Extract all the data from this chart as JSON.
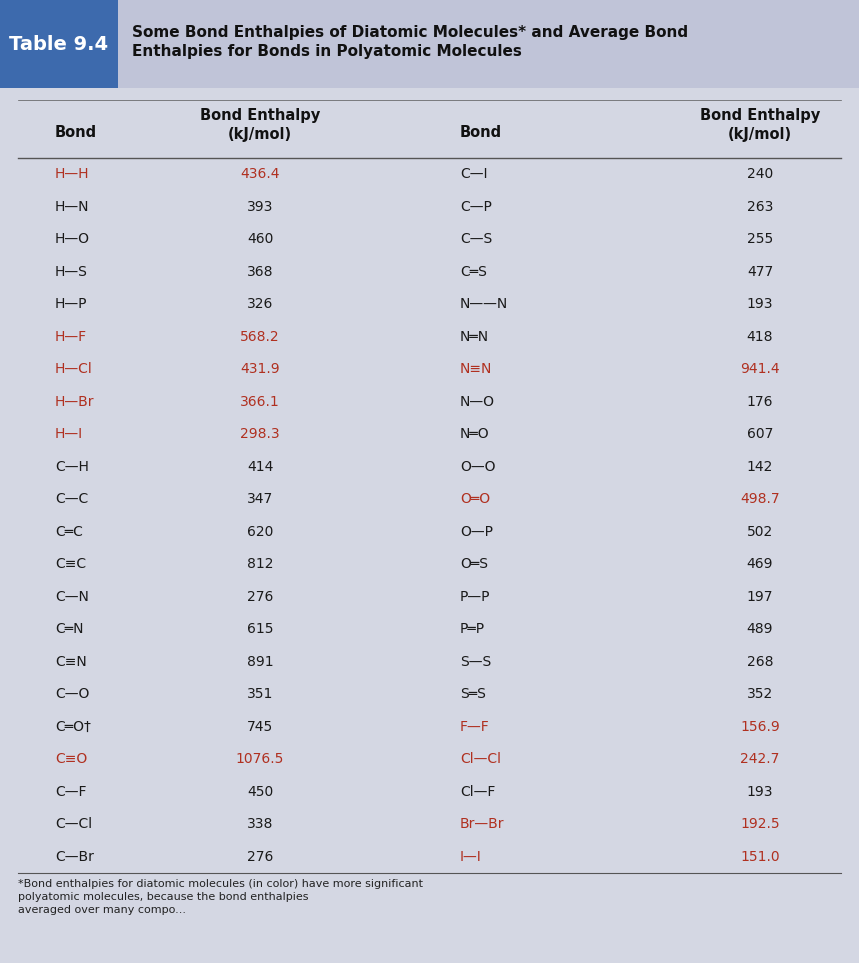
{
  "title_table": "Table 9.4",
  "title_text": "Some Bond Enthalpies of Diatomic Molecules* and Average Bond\nEnthalpies for Bonds in Polyatomic Molecules",
  "header_bg_blue": "#4a6fa5",
  "header_bg_lavender": "#b8bdd4",
  "table_bg": "#c8ccd8",
  "body_bg": "#d0d3e0",
  "left_data": [
    [
      "H—H",
      "436.4",
      true
    ],
    [
      "H—N",
      "393",
      false
    ],
    [
      "H—O",
      "460",
      false
    ],
    [
      "H—S",
      "368",
      false
    ],
    [
      "H—P",
      "326",
      false
    ],
    [
      "H—F",
      "568.2",
      true
    ],
    [
      "H—Cl",
      "431.9",
      true
    ],
    [
      "H—Br",
      "366.1",
      true
    ],
    [
      "H—I",
      "298.3",
      true
    ],
    [
      "C—H",
      "414",
      false
    ],
    [
      "C—C",
      "347",
      false
    ],
    [
      "C═C",
      "620",
      false
    ],
    [
      "C≡C",
      "812",
      false
    ],
    [
      "C—N",
      "276",
      false
    ],
    [
      "C═N",
      "615",
      false
    ],
    [
      "C≡N",
      "891",
      false
    ],
    [
      "C—O",
      "351",
      false
    ],
    [
      "C═O†",
      "745",
      false
    ],
    [
      "C≡O",
      "1076.5",
      true
    ],
    [
      "C—F",
      "450",
      false
    ],
    [
      "C—Cl",
      "338",
      false
    ],
    [
      "C—Br",
      "276",
      false
    ]
  ],
  "right_data": [
    [
      "C—I",
      "240",
      false
    ],
    [
      "C—P",
      "263",
      false
    ],
    [
      "C—S",
      "255",
      false
    ],
    [
      "C═S",
      "477",
      false
    ],
    [
      "N——N",
      "193",
      false
    ],
    [
      "N═N",
      "418",
      false
    ],
    [
      "N≡N",
      "941.4",
      true
    ],
    [
      "N—O",
      "176",
      false
    ],
    [
      "N═O",
      "607",
      false
    ],
    [
      "O—O",
      "142",
      false
    ],
    [
      "O═O",
      "498.7",
      true
    ],
    [
      "O—P",
      "502",
      false
    ],
    [
      "O═S",
      "469",
      false
    ],
    [
      "P—P",
      "197",
      false
    ],
    [
      "P═P",
      "489",
      false
    ],
    [
      "S—S",
      "268",
      false
    ],
    [
      "S═S",
      "352",
      false
    ],
    [
      "F—F",
      "156.9",
      true
    ],
    [
      "Cl—Cl",
      "242.7",
      true
    ],
    [
      "Cl—F",
      "193",
      false
    ],
    [
      "Br—Br",
      "192.5",
      true
    ],
    [
      "I—I",
      "151.0",
      true
    ]
  ],
  "color_highlight": "#b03020",
  "color_normal": "#1a1a1a",
  "footnote_line1": "*Bond enthalpies for diatomic molecules (in color) have more significant",
  "footnote_line2": "polyatomic molecules, because the bond enthalpies",
  "footnote_line3": "averaged over many compo..."
}
